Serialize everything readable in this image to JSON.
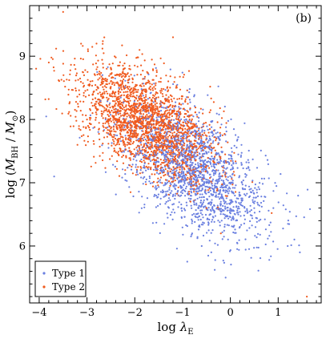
{
  "chart_data": {
    "type": "scatter",
    "panel_label": "(b)",
    "xlabel": "log λ_E",
    "ylabel": "log (M_BH / M_⊙)",
    "xlim": [
      -4.2,
      1.9
    ],
    "ylim": [
      5.1,
      9.8
    ],
    "x_ticks": [
      -4,
      -3,
      -2,
      -1,
      0,
      1
    ],
    "x_tick_labels": [
      "−4",
      "−3",
      "−2",
      "−1",
      "0",
      "1"
    ],
    "y_ticks": [
      6,
      7,
      8,
      9
    ],
    "y_tick_labels": [
      "6",
      "7",
      "8",
      "9"
    ],
    "grid": false,
    "legend_position": "bottom-left",
    "series": [
      {
        "name": "Type 1",
        "color": "#6a7fe0",
        "distribution": {
          "n": 1800,
          "x_mean": -0.75,
          "y_mean": 7.2,
          "x_sd": 0.75,
          "y_sd": 0.55,
          "correlation": -0.55
        },
        "points": [
          [
            -0.5,
            7.0
          ],
          [
            -0.2,
            6.7
          ],
          [
            0.1,
            6.5
          ],
          [
            -1.0,
            7.3
          ],
          [
            -0.8,
            6.2
          ],
          [
            0.3,
            6.9
          ],
          [
            -1.3,
            7.6
          ],
          [
            -0.4,
            5.9
          ],
          [
            0.6,
            6.4
          ],
          [
            -0.1,
            5.5
          ],
          [
            0.9,
            6.6
          ],
          [
            -1.6,
            8.0
          ],
          [
            -0.6,
            6.0
          ],
          [
            0.4,
            7.2
          ],
          [
            1.2,
            6.0
          ]
        ]
      },
      {
        "name": "Type 2",
        "color": "#f05a1e",
        "distribution": {
          "n": 2200,
          "x_mean": -1.75,
          "y_mean": 7.95,
          "x_sd": 0.7,
          "y_sd": 0.45,
          "correlation": -0.55
        },
        "points": [
          [
            -3.5,
            9.7
          ],
          [
            -3.8,
            8.9
          ],
          [
            -2.0,
            8.1
          ],
          [
            -1.5,
            7.8
          ],
          [
            -2.5,
            8.6
          ],
          [
            -1.0,
            7.3
          ],
          [
            -2.8,
            9.2
          ],
          [
            -3.0,
            8.0
          ],
          [
            -1.2,
            9.3
          ],
          [
            -0.5,
            6.6
          ],
          [
            -2.2,
            7.2
          ],
          [
            -3.2,
            7.6
          ],
          [
            1.6,
            5.2
          ],
          [
            -1.9,
            9.1
          ],
          [
            -0.2,
            6.2
          ]
        ]
      }
    ]
  }
}
